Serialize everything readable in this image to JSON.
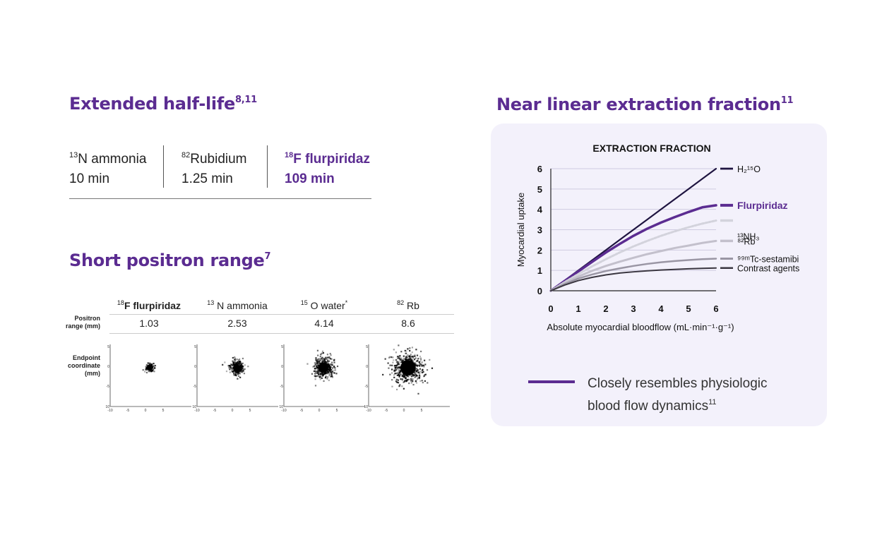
{
  "half_life": {
    "title": "Extended half-life",
    "title_refs": "8,11",
    "items": [
      {
        "iso": "13",
        "name": "N ammonia",
        "value": "10 min"
      },
      {
        "iso": "82",
        "name": "Rubidium",
        "value": "1.25 min"
      },
      {
        "iso": "18",
        "name": "F flurpiridaz",
        "value": "109 min"
      }
    ]
  },
  "positron": {
    "title": "Short positron range",
    "title_refs": "7",
    "row_label_range": "Positron range (mm)",
    "row_label_endpoint": "Endpoint coordinate (mm)",
    "tracers": [
      {
        "iso": "18",
        "name": "F flurpiridaz",
        "suffix": "",
        "range": "1.03",
        "spread": 3
      },
      {
        "iso": "13",
        "name": " N ammonia",
        "suffix": "",
        "range": "2.53",
        "spread": 5.5
      },
      {
        "iso": "15",
        "name": " O water",
        "suffix": "*",
        "range": "4.14",
        "spread": 8
      },
      {
        "iso": "82",
        "name": " Rb",
        "suffix": "",
        "range": "8.6",
        "spread": 12
      }
    ],
    "axis_ticks": [
      "5",
      "0",
      "-5",
      "-10"
    ],
    "x_ticks": [
      "-10",
      "-5",
      "0",
      "5"
    ]
  },
  "extraction": {
    "title": "Near linear extraction fraction",
    "title_refs": "11",
    "legend_text": "Closely resembles physiologic blood flow dynamics",
    "legend_ref": "11",
    "legend_color": "#5b2c91"
  },
  "chart_data": {
    "type": "line",
    "title": "EXTRACTION FRACTION",
    "xlabel": "Absolute myocardial bloodflow (mL·min⁻¹·g⁻¹)",
    "ylabel": "Myocardial uptake",
    "xlim": [
      0,
      6
    ],
    "ylim": [
      0,
      6
    ],
    "x_ticks": [
      0,
      1,
      2,
      3,
      4,
      5,
      6
    ],
    "y_ticks": [
      0,
      1,
      2,
      3,
      4,
      5,
      6
    ],
    "grid": "horizontal",
    "x": [
      0,
      0.5,
      1,
      1.5,
      2,
      2.5,
      3,
      3.5,
      4,
      4.5,
      5,
      5.5,
      6
    ],
    "series": [
      {
        "name": "H₂¹⁵O",
        "color": "#1e1440",
        "width": 2.2,
        "dash": "",
        "values": [
          0,
          0.5,
          1,
          1.5,
          2,
          2.5,
          3,
          3.5,
          4,
          4.5,
          5,
          5.5,
          6
        ]
      },
      {
        "name": "Flurpiridaz",
        "color": "#5b2c91",
        "width": 3.5,
        "dash": "",
        "values": [
          0,
          0.48,
          0.95,
          1.42,
          1.88,
          2.3,
          2.7,
          3.05,
          3.35,
          3.62,
          3.87,
          4.1,
          4.2
        ]
      },
      {
        "name": "¹³NH₃",
        "color": "#d3d3dc",
        "width": 3,
        "dash": "3 2",
        "values": [
          0,
          0.42,
          0.82,
          1.2,
          1.55,
          1.88,
          2.18,
          2.45,
          2.7,
          2.92,
          3.12,
          3.3,
          3.45
        ]
      },
      {
        "name": "⁸²Rb",
        "color": "#c3c0cc",
        "width": 3,
        "dash": "",
        "values": [
          0,
          0.38,
          0.7,
          0.98,
          1.22,
          1.43,
          1.62,
          1.8,
          1.95,
          2.1,
          2.22,
          2.35,
          2.45
        ]
      },
      {
        "name": "⁹⁹ᵐTc-sestamibi",
        "color": "#9a96a4",
        "width": 2.5,
        "dash": "",
        "values": [
          0,
          0.33,
          0.6,
          0.8,
          0.97,
          1.1,
          1.22,
          1.32,
          1.4,
          1.46,
          1.51,
          1.55,
          1.58
        ]
      },
      {
        "name": "Contrast agents",
        "color": "#3a3640",
        "width": 2,
        "dash": "",
        "values": [
          0,
          0.28,
          0.5,
          0.66,
          0.78,
          0.87,
          0.93,
          0.98,
          1.02,
          1.05,
          1.08,
          1.1,
          1.12
        ]
      }
    ]
  }
}
